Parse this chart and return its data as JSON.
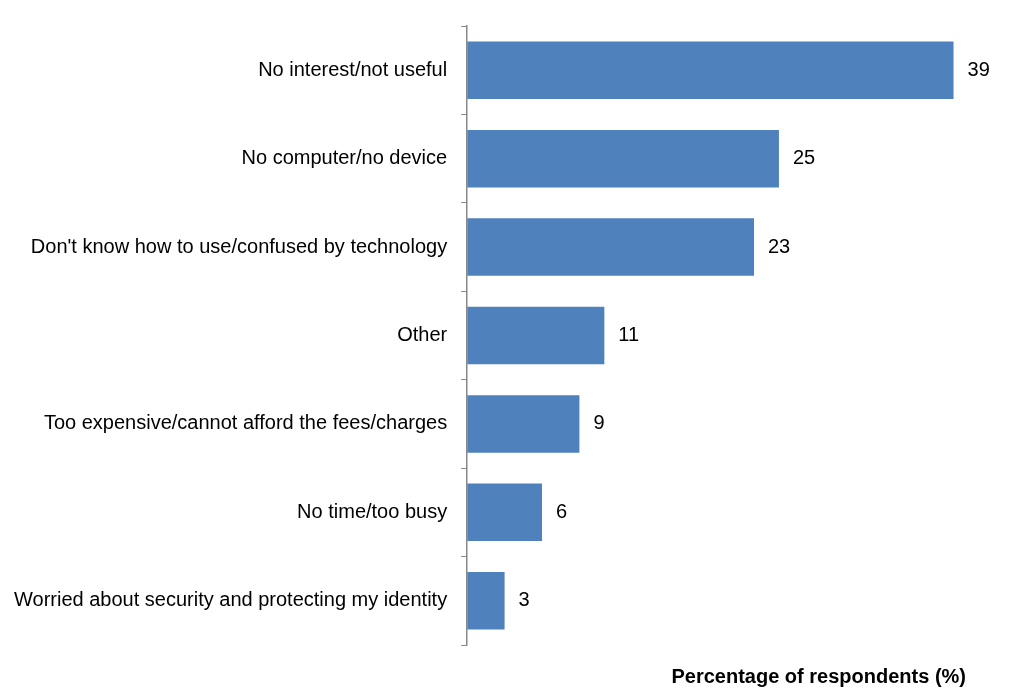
{
  "chart_data": {
    "type": "bar",
    "orientation": "horizontal",
    "xlabel": "Percentage of respondents (%)",
    "categories": [
      "No interest/not useful",
      "No computer/no device",
      "Don't know how to use/confused by technology",
      "Other",
      "Too expensive/cannot afford the fees/charges",
      "No time/too busy",
      "Worried about security and protecting my identity"
    ],
    "values": [
      39,
      25,
      23,
      11,
      9,
      6,
      3
    ],
    "color": "#4f81bd",
    "data_labels": true,
    "grid": false,
    "legend": false
  }
}
